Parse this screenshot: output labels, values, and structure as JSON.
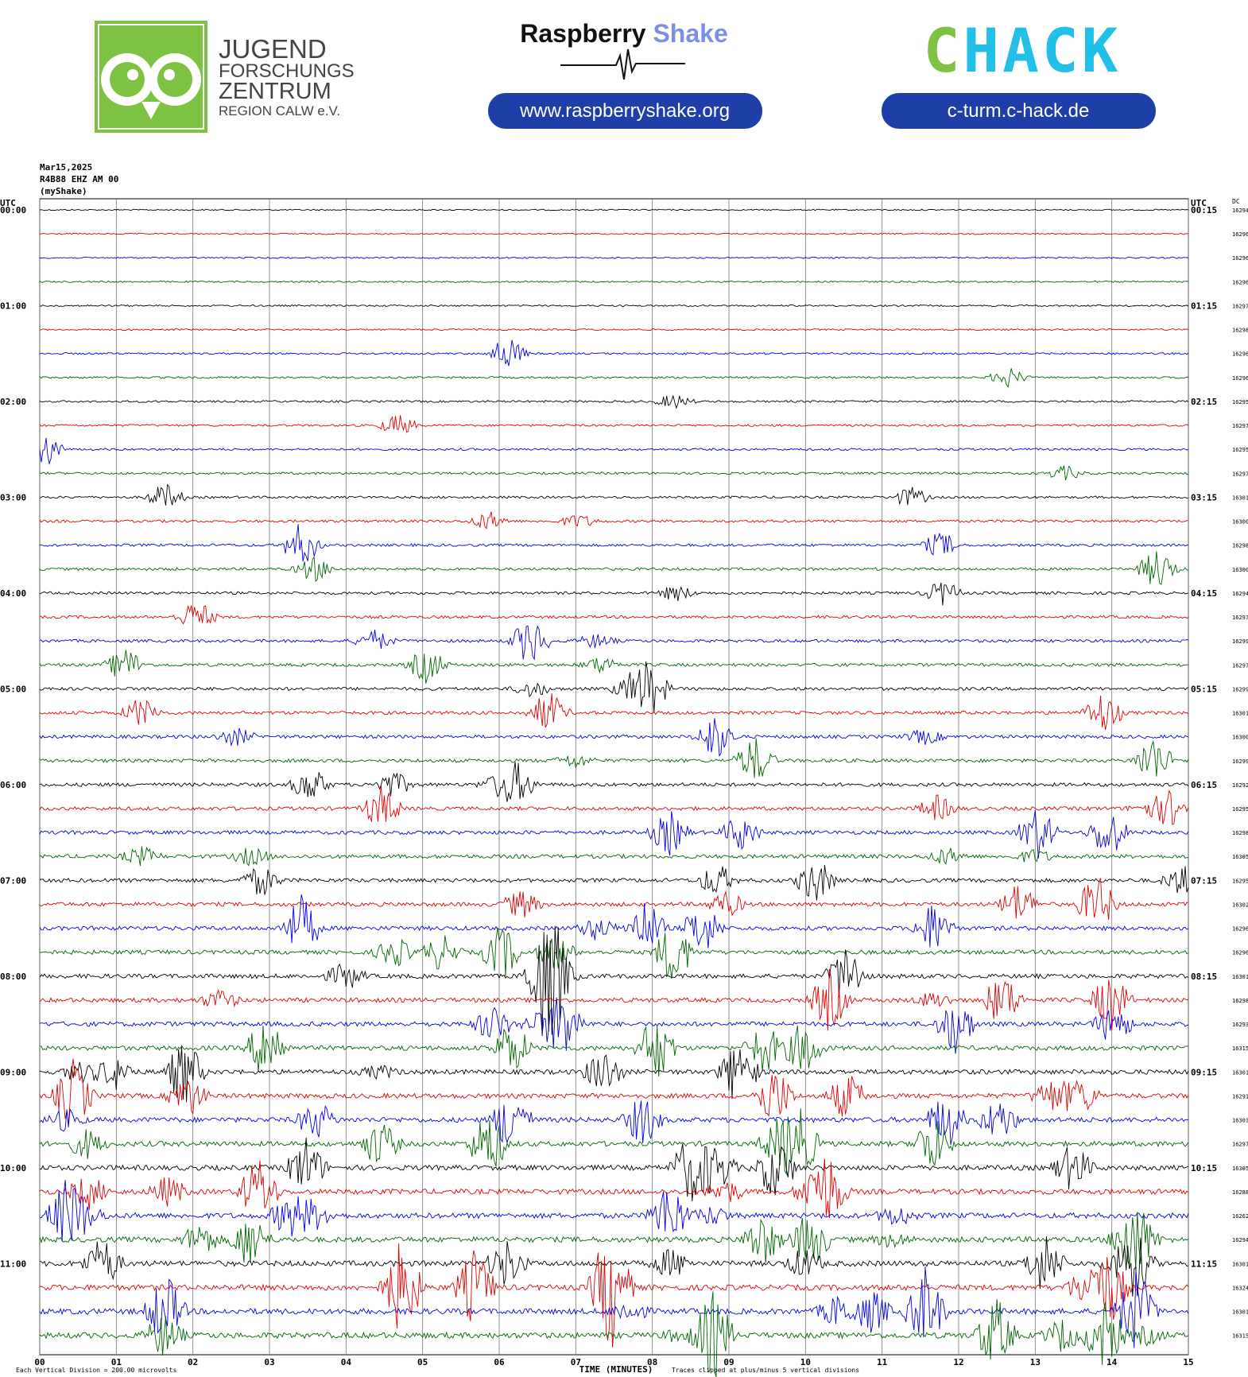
{
  "header": {
    "org_line1": "JUGEND",
    "org_line2": "FORSCHUNGS",
    "org_line3": "ZENTRUM",
    "org_line4": "REGION CALW e.V.",
    "rs_word1": "Raspberry",
    "rs_word2": "Shake",
    "rs_url": "www.raspberryshake.org",
    "chack_c": "C",
    "chack_hack": "HACK",
    "chack_url": "c-turm.c-hack.de"
  },
  "chart_data": {
    "type": "helicorder",
    "date": "Mar15,2025",
    "station": "R4B88 EHZ AM 00",
    "source": "(myShake)",
    "left_axis_label": "UTC",
    "right_axis_label": "UTC",
    "dc_label": "DC",
    "row_labels_left": [
      "00:00",
      "01:00",
      "02:00",
      "03:00",
      "04:00",
      "05:00",
      "06:00",
      "07:00",
      "08:00",
      "09:00",
      "10:00",
      "11:00"
    ],
    "row_labels_right": [
      "00:15",
      "01:15",
      "02:15",
      "03:15",
      "04:15",
      "05:15",
      "06:15",
      "07:15",
      "08:15",
      "09:15",
      "10:15",
      "11:15"
    ],
    "dc_values": [
      16294,
      16296,
      16296,
      16296,
      16297,
      16298,
      16296,
      16296,
      16295,
      16297,
      16295,
      16297,
      16301,
      16300,
      16298,
      16300,
      16294,
      16297,
      16299,
      16297,
      16299,
      16301,
      16300,
      16299,
      16292,
      16295,
      16298,
      16305,
      16295,
      16302,
      16296,
      16296,
      16301,
      16298,
      16293,
      16315,
      16301,
      16291,
      16303,
      16297,
      16305,
      16288,
      16262,
      16294,
      16301,
      16324,
      16301,
      16315
    ],
    "colors": [
      "#000000",
      "#e00000",
      "#0000e0",
      "#006400"
    ],
    "xlim": [
      0,
      15
    ],
    "xticks": [
      {
        "value": 0,
        "label": "00"
      },
      {
        "value": 1,
        "label": "01"
      },
      {
        "value": 2,
        "label": "02"
      },
      {
        "value": 3,
        "label": "03"
      },
      {
        "value": 4,
        "label": "04"
      },
      {
        "value": 5,
        "label": "05"
      },
      {
        "value": 6,
        "label": "06"
      },
      {
        "value": 7,
        "label": "07"
      },
      {
        "value": 8,
        "label": "08"
      },
      {
        "value": 9,
        "label": "09"
      },
      {
        "value": 10,
        "label": "10"
      },
      {
        "value": 11,
        "label": "11"
      },
      {
        "value": 12,
        "label": "12"
      },
      {
        "value": 13,
        "label": "13"
      },
      {
        "value": 14,
        "label": "14"
      },
      {
        "value": 15,
        "label": "15"
      }
    ],
    "xlabel": "TIME (MINUTES)",
    "footnote_left": "Each Vertical Division =  200.00 microvolts",
    "footnote_right": "Traces clipped at plus/minus 5 vertical divisions"
  }
}
